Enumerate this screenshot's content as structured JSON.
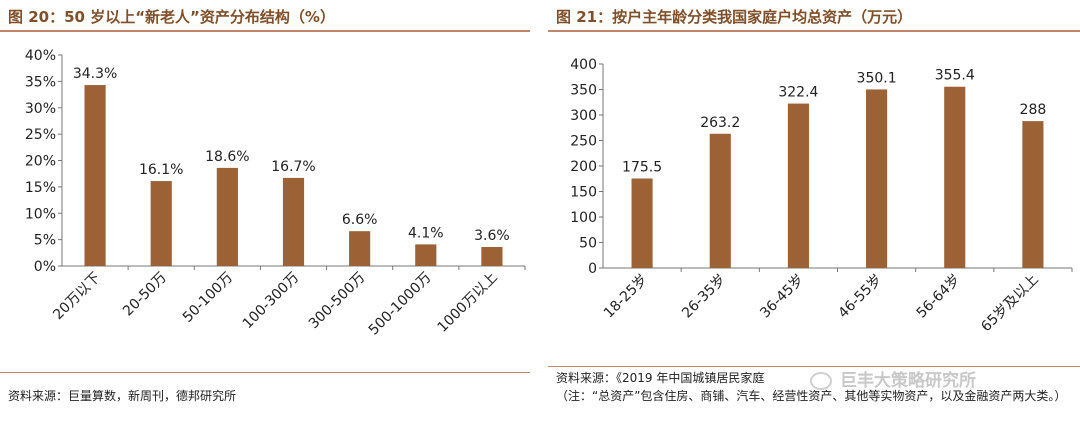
{
  "left": {
    "title": "图 20：50 岁以上“新老人”资产分布结构（%）",
    "source": "资料来源：巨量算数，新周刊，德邦研究所"
  },
  "right": {
    "title": "图 21：按户主年龄分类我国家庭户均总资产（万元）",
    "source": "资料来源：《2019 年中国城镇居民家庭",
    "note": "（注：“总资产”包含住房、商铺、汽车、经营性资产、其他等实物资产，以及金融资产两大类。）",
    "watermark": "巨丰大策略研究所"
  },
  "chart_data": [
    {
      "type": "bar",
      "categories": [
        "20万以下",
        "20-50万",
        "50-100万",
        "100-300万",
        "300-500万",
        "500-1000万",
        "1000万以上"
      ],
      "values": [
        34.3,
        16.1,
        18.6,
        16.7,
        6.6,
        4.1,
        3.6
      ],
      "data_labels": [
        "34.3%",
        "16.1%",
        "18.6%",
        "16.7%",
        "6.6%",
        "4.1%",
        "3.6%"
      ],
      "ylim": [
        0,
        40
      ],
      "yticks": [
        "0%",
        "5%",
        "10%",
        "15%",
        "20%",
        "25%",
        "30%",
        "35%",
        "40%"
      ],
      "bar_color": "#9c6236"
    },
    {
      "type": "bar",
      "categories": [
        "18-25岁",
        "26-35岁",
        "36-45岁",
        "46-55岁",
        "56-64岁",
        "65岁及以上"
      ],
      "values": [
        175.5,
        263.2,
        322.4,
        350.1,
        355.4,
        288
      ],
      "data_labels": [
        "175.5",
        "263.2",
        "322.4",
        "350.1",
        "355.4",
        "288"
      ],
      "ylim": [
        0,
        400
      ],
      "yticks": [
        "0",
        "50",
        "100",
        "150",
        "200",
        "250",
        "300",
        "350",
        "400"
      ],
      "bar_color": "#9c6236"
    }
  ]
}
